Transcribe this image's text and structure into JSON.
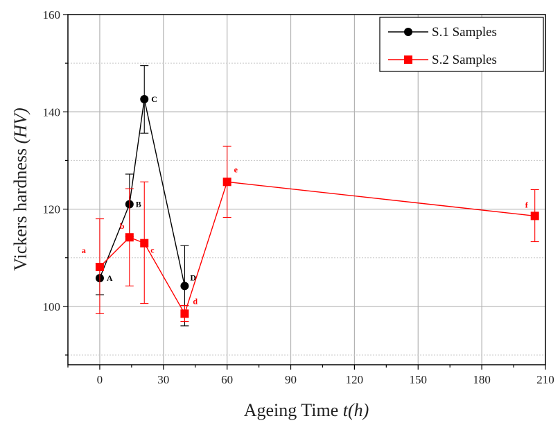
{
  "chart_data": {
    "type": "line",
    "xlabel": "Ageing Time",
    "xlabel_italic": "t(h)",
    "ylabel": "Vickers hardness",
    "ylabel_italic": "(HV)",
    "xlim": [
      -15,
      210
    ],
    "ylim": [
      88,
      160
    ],
    "xticks": [
      0,
      30,
      60,
      90,
      120,
      150,
      180,
      210
    ],
    "yticks": [
      100,
      120,
      140,
      160
    ],
    "grid": true,
    "legend_position": "top-right",
    "series": [
      {
        "name": "S.1 Samples",
        "color": "#000000",
        "marker": "circle",
        "points": [
          {
            "x": 0,
            "y": 105.8,
            "err_low": 102.4,
            "err_high": 108.8,
            "label": "A"
          },
          {
            "x": 14,
            "y": 121.0,
            "err_low": 114.3,
            "err_high": 127.2,
            "label": "B"
          },
          {
            "x": 21,
            "y": 142.6,
            "err_low": 135.6,
            "err_high": 149.5,
            "label": "C"
          },
          {
            "x": 40,
            "y": 104.2,
            "err_low": 96.0,
            "err_high": 112.5,
            "label": "D"
          }
        ]
      },
      {
        "name": "S.2 Samples",
        "color": "#ff0000",
        "marker": "square",
        "points": [
          {
            "x": 0,
            "y": 108.1,
            "err_low": 98.5,
            "err_high": 118.0,
            "label": "a"
          },
          {
            "x": 14,
            "y": 114.2,
            "err_low": 104.2,
            "err_high": 124.2,
            "label": "b"
          },
          {
            "x": 21,
            "y": 113.0,
            "err_low": 100.6,
            "err_high": 125.6,
            "label": "c"
          },
          {
            "x": 40,
            "y": 98.5,
            "err_low": 96.9,
            "err_high": 100.2,
            "label": "d"
          },
          {
            "x": 60,
            "y": 125.6,
            "err_low": 118.3,
            "err_high": 132.9,
            "label": "e"
          },
          {
            "x": 205,
            "y": 118.6,
            "err_low": 113.3,
            "err_high": 124.0,
            "label": "f"
          }
        ]
      }
    ]
  }
}
